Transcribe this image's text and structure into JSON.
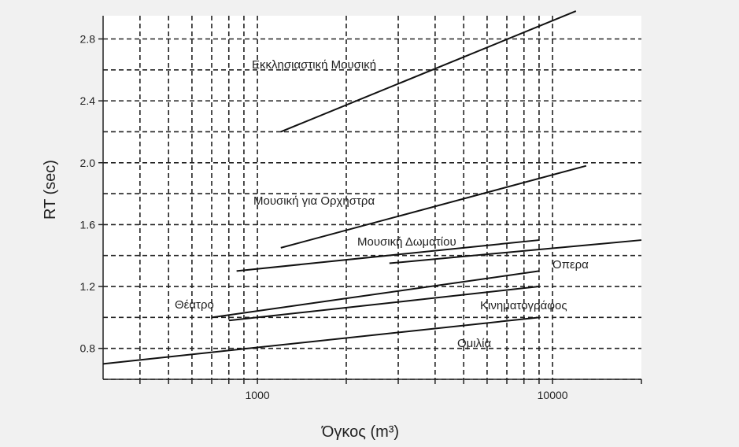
{
  "chart_data": {
    "type": "line",
    "title": "",
    "xlabel": "Όγκος (m³)",
    "ylabel": "RT (sec)",
    "xscale": "log",
    "xlim": [
      300,
      20000
    ],
    "ylim": [
      0.6,
      2.95
    ],
    "grid": true,
    "x_ticks": [
      {
        "value": 1000,
        "label": "1000"
      },
      {
        "value": 10000,
        "label": "10000"
      }
    ],
    "x_minor_gridlines": [
      400,
      500,
      600,
      700,
      800,
      900,
      2000,
      3000,
      4000,
      5000,
      6000,
      7000,
      8000,
      9000
    ],
    "y_ticks": [
      {
        "value": 0.8,
        "label": "0.8"
      },
      {
        "value": 1.2,
        "label": "1.2"
      },
      {
        "value": 1.6,
        "label": "1.6"
      },
      {
        "value": 2.0,
        "label": "2.0"
      },
      {
        "value": 2.4,
        "label": "2.4"
      },
      {
        "value": 2.8,
        "label": "2.8"
      }
    ],
    "y_minor_gridlines": [
      0.6,
      1.0,
      1.4,
      1.8,
      2.2,
      2.6
    ],
    "series": [
      {
        "name": "Εκκλησιαστική Μουσική",
        "x": [
          1200,
          12000
        ],
        "y": [
          2.2,
          2.98
        ]
      },
      {
        "name": "Μουσική για Ορχήστρα",
        "x": [
          1200,
          13000
        ],
        "y": [
          1.45,
          1.98
        ]
      },
      {
        "name": "Μουσική Δωματίου",
        "x": [
          850,
          9000
        ],
        "y": [
          1.3,
          1.5
        ]
      },
      {
        "name": "Όπερα",
        "x": [
          2800,
          20000
        ],
        "y": [
          1.35,
          1.5
        ]
      },
      {
        "name": "Θέατρο",
        "x": [
          700,
          9000
        ],
        "y": [
          1.0,
          1.3
        ]
      },
      {
        "name": "Κινηματογράφος",
        "x": [
          800,
          9000
        ],
        "y": [
          0.98,
          1.2
        ]
      },
      {
        "name": "Ομιλία",
        "x": [
          300,
          9000
        ],
        "y": [
          0.7,
          1.0
        ]
      }
    ]
  }
}
